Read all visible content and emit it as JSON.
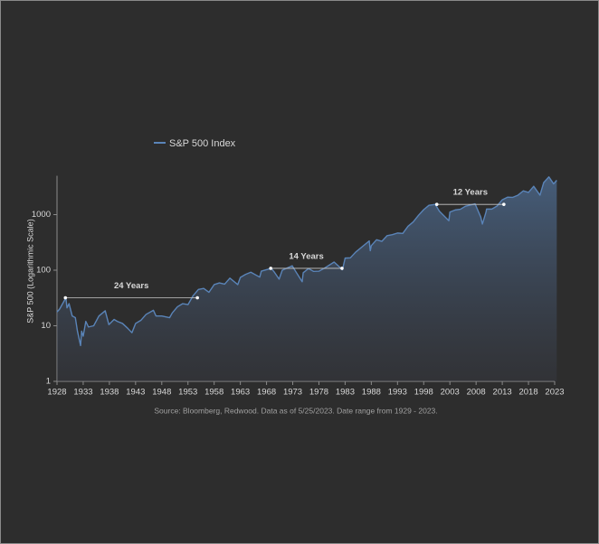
{
  "chart_data": {
    "type": "line",
    "legend_label": "S&P 500 Index",
    "y_label": "S&P 500 (Logarithmic Scale)",
    "source": "Source: Bloomberg, Redwood. Data as of 5/25/2023. Date range from 1929 - 2023.",
    "log_scale": true,
    "xlim": [
      1928,
      2023
    ],
    "ylim": [
      1,
      5000
    ],
    "xticks": [
      1928,
      1933,
      1938,
      1943,
      1948,
      1953,
      1958,
      1963,
      1968,
      1973,
      1978,
      1983,
      1988,
      1993,
      1998,
      2003,
      2008,
      2013,
      2018,
      2023
    ],
    "yticks": [
      1,
      10,
      100,
      1000
    ],
    "x": [
      1928.0,
      1928.5,
      1929.7,
      1929.9,
      1930.3,
      1930.9,
      1931.5,
      1931.9,
      1932.5,
      1932.7,
      1933.0,
      1933.5,
      1934,
      1935,
      1936,
      1937.2,
      1937.9,
      1938.9,
      1939.5,
      1940.5,
      1941.5,
      1942.3,
      1943,
      1944,
      1945,
      1946.4,
      1946.9,
      1948,
      1949.5,
      1950,
      1951,
      1952,
      1953,
      1954,
      1955,
      1956,
      1957,
      1958,
      1959,
      1960,
      1961,
      1962.5,
      1963,
      1964,
      1965,
      1966.7,
      1967,
      1968.9,
      1969.5,
      1970.4,
      1971,
      1972.9,
      1973.5,
      1974.8,
      1975,
      1976,
      1977,
      1978,
      1979,
      1980.9,
      1982.5,
      1983,
      1984,
      1985,
      1987.6,
      1987.8,
      1988,
      1989,
      1990,
      1991,
      1992,
      1993,
      1994,
      1995,
      1996,
      1997,
      1998,
      1999,
      2000.2,
      2001,
      2002.8,
      2003,
      2004,
      2005,
      2006,
      2007.8,
      2008.9,
      2009.2,
      2009.9,
      2010,
      2011,
      2012,
      2013,
      2014,
      2015,
      2016,
      2017,
      2018,
      2019,
      2020.2,
      2020.9,
      2021.9,
      2022.8,
      2023.4
    ],
    "series": [
      {
        "name": "S&P 500 Index",
        "color": "#5a84b8",
        "values": [
          17.7,
          20,
          31.9,
          21,
          25,
          15,
          14,
          8,
          4.4,
          8,
          6.5,
          12,
          9.5,
          10,
          15,
          18.6,
          10.5,
          13,
          12,
          11,
          9,
          7.5,
          11,
          12.5,
          16,
          19,
          15,
          15,
          14,
          17,
          22,
          25,
          24,
          35,
          45,
          47,
          40,
          55,
          59,
          56,
          72,
          55,
          74,
          84,
          92,
          75,
          96,
          108,
          92,
          69,
          100,
          120,
          97,
          62,
          90,
          107,
          95,
          96,
          108,
          140,
          102,
          165,
          167,
          211,
          336,
          224,
          277,
          353,
          330,
          417,
          435,
          466,
          459,
          615,
          740,
          970,
          1229,
          1469,
          1527,
          1148,
          777,
          1111,
          1211,
          1248,
          1418,
          1565,
          900,
          677,
          1115,
          1257,
          1257,
          1426,
          1848,
          2058,
          2043,
          2238,
          2673,
          2506,
          3230,
          2237,
          3756,
          4766,
          3577,
          4150
        ]
      }
    ],
    "annotations": [
      {
        "label": "24 Years",
        "x0": 1929.6,
        "x1": 1954.8,
        "value": 31.9
      },
      {
        "label": "14 Years",
        "x0": 1968.8,
        "x1": 1982.4,
        "value": 108
      },
      {
        "label": "12 Years",
        "x0": 2000.5,
        "x1": 2013.3,
        "value": 1527
      }
    ]
  }
}
